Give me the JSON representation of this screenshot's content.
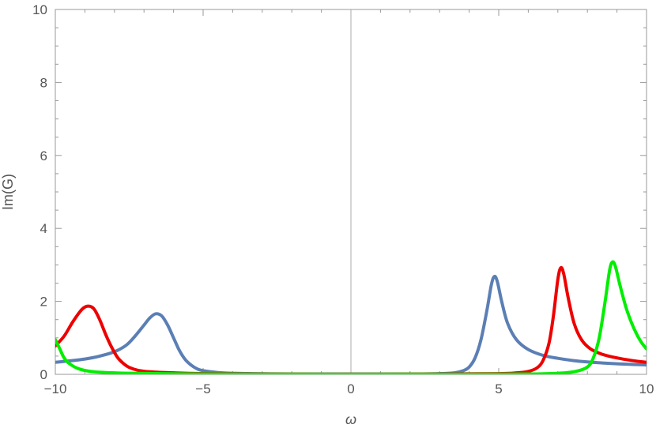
{
  "chart_data": {
    "type": "line",
    "xlabel": "ω",
    "ylabel": "Im(G)",
    "xlim": [
      -10,
      10
    ],
    "ylim": [
      0,
      10
    ],
    "x_ticks": [
      -10,
      -5,
      0,
      5,
      10
    ],
    "y_ticks": [
      0,
      2,
      4,
      6,
      8,
      10
    ],
    "x_tick_labels": [
      "−10",
      "−5",
      "0",
      "5",
      "10"
    ],
    "y_tick_labels": [
      "0",
      "2",
      "4",
      "6",
      "8",
      "10"
    ],
    "grid": false,
    "legend": "none",
    "series": [
      {
        "color": "#5b7fb4",
        "points": [
          [
            -10,
            0.33
          ],
          [
            -9.5,
            0.37
          ],
          [
            -9,
            0.42
          ],
          [
            -8.5,
            0.5
          ],
          [
            -8,
            0.62
          ],
          [
            -7.6,
            0.8
          ],
          [
            -7.3,
            1.05
          ],
          [
            -7.0,
            1.35
          ],
          [
            -6.8,
            1.55
          ],
          [
            -6.6,
            1.66
          ],
          [
            -6.4,
            1.6
          ],
          [
            -6.2,
            1.35
          ],
          [
            -6.0,
            1.0
          ],
          [
            -5.8,
            0.65
          ],
          [
            -5.6,
            0.4
          ],
          [
            -5.4,
            0.25
          ],
          [
            -5.2,
            0.15
          ],
          [
            -5.0,
            0.1
          ],
          [
            -4.5,
            0.05
          ],
          [
            -4,
            0.03
          ],
          [
            -3,
            0.015
          ],
          [
            -2,
            0.01
          ],
          [
            0,
            0.01
          ],
          [
            2,
            0.01
          ],
          [
            3,
            0.02
          ],
          [
            3.5,
            0.04
          ],
          [
            3.8,
            0.1
          ],
          [
            4.0,
            0.2
          ],
          [
            4.2,
            0.45
          ],
          [
            4.4,
            0.95
          ],
          [
            4.6,
            1.75
          ],
          [
            4.75,
            2.45
          ],
          [
            4.85,
            2.68
          ],
          [
            4.95,
            2.55
          ],
          [
            5.1,
            2.0
          ],
          [
            5.3,
            1.4
          ],
          [
            5.6,
            0.95
          ],
          [
            6,
            0.68
          ],
          [
            6.5,
            0.52
          ],
          [
            7,
            0.44
          ],
          [
            7.5,
            0.38
          ],
          [
            8,
            0.34
          ],
          [
            9,
            0.29
          ],
          [
            10,
            0.26
          ]
        ]
      },
      {
        "color": "#ee0000",
        "points": [
          [
            -10,
            0.78
          ],
          [
            -9.7,
            1.05
          ],
          [
            -9.4,
            1.45
          ],
          [
            -9.1,
            1.78
          ],
          [
            -8.9,
            1.87
          ],
          [
            -8.7,
            1.8
          ],
          [
            -8.5,
            1.5
          ],
          [
            -8.3,
            1.1
          ],
          [
            -8.1,
            0.75
          ],
          [
            -7.9,
            0.47
          ],
          [
            -7.7,
            0.3
          ],
          [
            -7.5,
            0.19
          ],
          [
            -7.2,
            0.11
          ],
          [
            -6.8,
            0.07
          ],
          [
            -6,
            0.04
          ],
          [
            -5,
            0.02
          ],
          [
            -3,
            0.01
          ],
          [
            0,
            0.005
          ],
          [
            3,
            0.01
          ],
          [
            5,
            0.02
          ],
          [
            5.6,
            0.04
          ],
          [
            6.0,
            0.08
          ],
          [
            6.3,
            0.18
          ],
          [
            6.5,
            0.38
          ],
          [
            6.7,
            0.85
          ],
          [
            6.85,
            1.6
          ],
          [
            7.0,
            2.6
          ],
          [
            7.1,
            2.92
          ],
          [
            7.2,
            2.75
          ],
          [
            7.35,
            2.1
          ],
          [
            7.55,
            1.4
          ],
          [
            7.8,
            0.95
          ],
          [
            8.1,
            0.7
          ],
          [
            8.5,
            0.55
          ],
          [
            9,
            0.45
          ],
          [
            9.5,
            0.38
          ],
          [
            10,
            0.33
          ]
        ]
      },
      {
        "color": "#00ee00",
        "points": [
          [
            -10,
            0.95
          ],
          [
            -9.85,
            0.7
          ],
          [
            -9.7,
            0.45
          ],
          [
            -9.5,
            0.28
          ],
          [
            -9.2,
            0.15
          ],
          [
            -8.8,
            0.08
          ],
          [
            -8.3,
            0.05
          ],
          [
            -7.5,
            0.03
          ],
          [
            -6,
            0.015
          ],
          [
            -3,
            0.005
          ],
          [
            0,
            0.003
          ],
          [
            3,
            0.005
          ],
          [
            6,
            0.01
          ],
          [
            7,
            0.03
          ],
          [
            7.6,
            0.08
          ],
          [
            8.0,
            0.2
          ],
          [
            8.2,
            0.45
          ],
          [
            8.4,
            1.0
          ],
          [
            8.6,
            2.0
          ],
          [
            8.75,
            2.85
          ],
          [
            8.85,
            3.08
          ],
          [
            8.95,
            2.95
          ],
          [
            9.1,
            2.45
          ],
          [
            9.3,
            1.85
          ],
          [
            9.5,
            1.4
          ],
          [
            9.7,
            1.05
          ],
          [
            9.85,
            0.85
          ],
          [
            10,
            0.7
          ]
        ]
      }
    ]
  }
}
